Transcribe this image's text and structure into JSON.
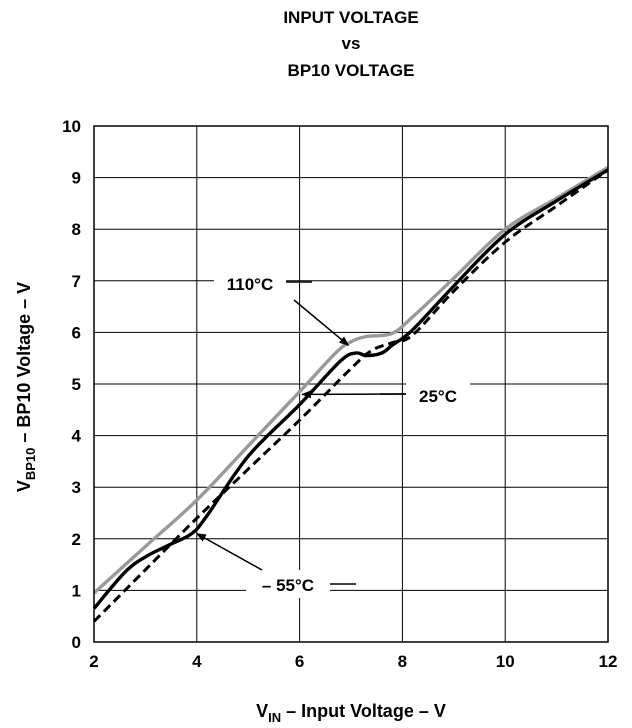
{
  "chart_data": {
    "type": "line",
    "title_lines": [
      "INPUT VOLTAGE",
      "vs",
      "BP10 VOLTAGE"
    ],
    "xlabel": {
      "main": "V",
      "sub": "IN",
      "rest": " – Input Voltage – V"
    },
    "ylabel": {
      "main": "V",
      "sub": "BP10",
      "rest": " – BP10 Voltage – V"
    },
    "xlim": [
      2,
      12
    ],
    "ylim": [
      0,
      10
    ],
    "xticks": [
      "2",
      "4",
      "6",
      "8",
      "10",
      "12"
    ],
    "yticks": [
      "0",
      "1",
      "2",
      "3",
      "4",
      "5",
      "6",
      "7",
      "8",
      "9",
      "10"
    ],
    "grid": true,
    "series": [
      {
        "name": "110°C",
        "color": "#999999",
        "style": "solid",
        "x": [
          2.0,
          3.0,
          4.0,
          5.0,
          6.0,
          6.7,
          7.0,
          7.3,
          7.8,
          8.2,
          9.0,
          10.0,
          11.0,
          12.0
        ],
        "y": [
          0.95,
          1.85,
          2.75,
          3.8,
          4.85,
          5.6,
          5.82,
          5.92,
          5.98,
          6.3,
          7.05,
          8.0,
          8.6,
          9.2
        ]
      },
      {
        "name": "25°C",
        "color": "#000000",
        "style": "dashed",
        "x": [
          2.0,
          3.0,
          4.0,
          5.0,
          6.0,
          7.0,
          7.4,
          7.8,
          8.2,
          9.0,
          10.0,
          11.0,
          12.0
        ],
        "y": [
          0.4,
          1.4,
          2.4,
          3.35,
          4.3,
          5.3,
          5.65,
          5.8,
          5.95,
          6.8,
          7.75,
          8.45,
          9.15
        ]
      },
      {
        "name": "– 55°C",
        "color": "#000000",
        "style": "solid",
        "x": [
          2.0,
          2.6,
          3.0,
          3.5,
          3.9,
          4.2,
          5.0,
          6.0,
          6.8,
          7.1,
          7.3,
          7.6,
          7.8,
          8.2,
          9.0,
          10.0,
          11.0,
          12.0
        ],
        "y": [
          0.65,
          1.35,
          1.65,
          1.9,
          2.1,
          2.45,
          3.6,
          4.6,
          5.45,
          5.6,
          5.55,
          5.6,
          5.75,
          6.05,
          6.9,
          7.9,
          8.55,
          9.15
        ]
      }
    ],
    "annotations": [
      {
        "text": "110°C"
      },
      {
        "text": "25°C"
      },
      {
        "text": "– 55°C"
      }
    ]
  }
}
